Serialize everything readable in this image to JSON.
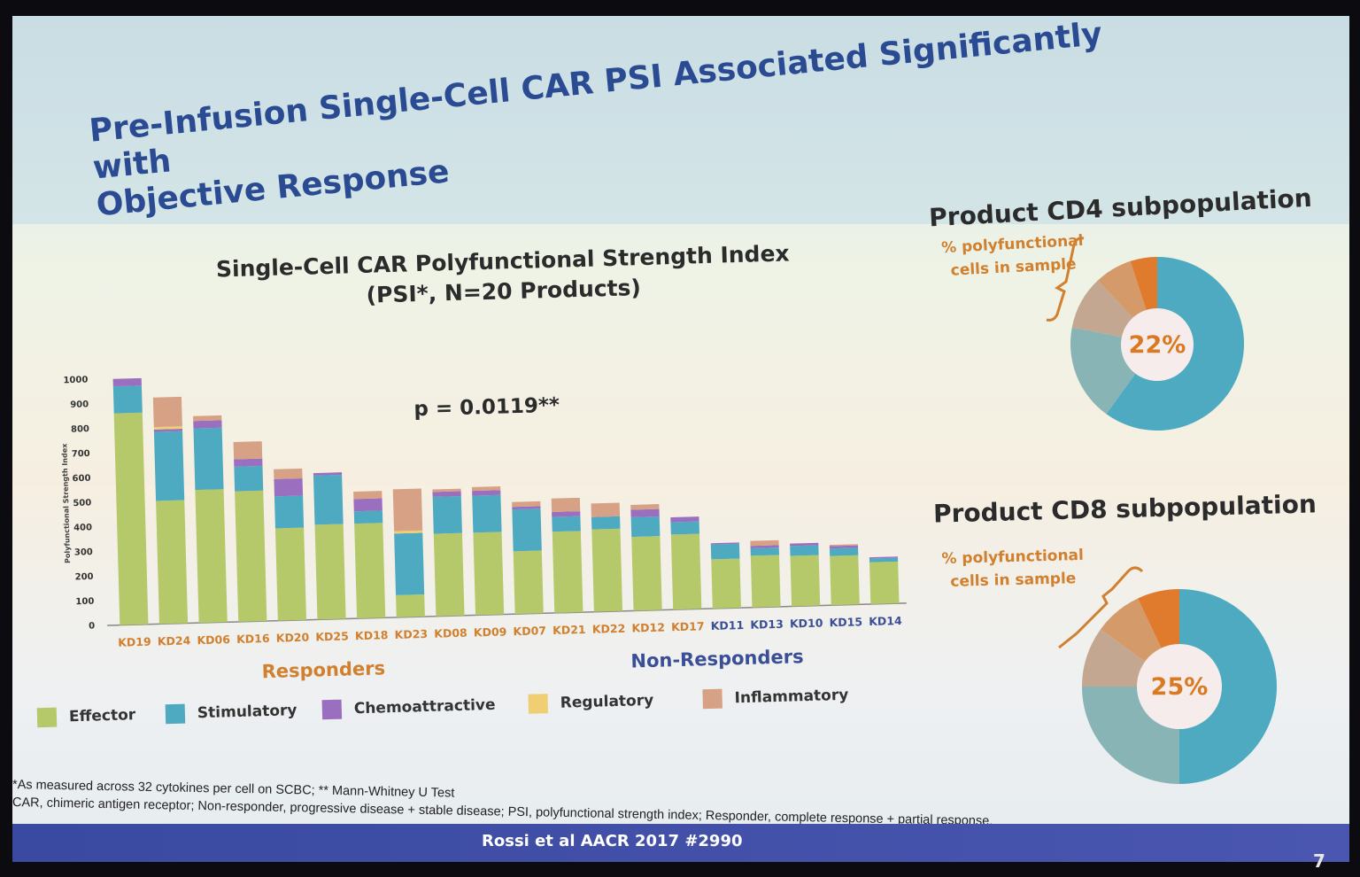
{
  "slide": {
    "title_line1": "Pre-Infusion Single-Cell CAR PSI Associated Significantly with",
    "title_line2": "Objective Response",
    "footnote1": "*As measured across 32 cytokines per cell on SCBC; ** Mann-Whitney U Test",
    "footnote2": "CAR, chimeric antigen receptor; Non-responder, progressive disease + stable disease; PSI, polyfunctional strength index; Responder, complete response + partial response.",
    "citation": "Rossi et al AACR 2017 #2990",
    "slide_number": "7"
  },
  "bar_chart": {
    "title_line1": "Single-Cell CAR Polyfunctional Strength Index",
    "title_line2": "(PSI*, N=20 Products)",
    "pvalue": "p = 0.0119**",
    "responders_label": "Responders",
    "nonresponders_label": "Non-Responders"
  },
  "legend": [
    {
      "label": "Effector",
      "color": "#b5c96a"
    },
    {
      "label": "Stimulatory",
      "color": "#4eaac1"
    },
    {
      "label": "Chemoattractive",
      "color": "#9a6fc0"
    },
    {
      "label": "Regulatory",
      "color": "#efcf72"
    },
    {
      "label": "Inflammatory",
      "color": "#d6a184"
    }
  ],
  "donuts": [
    {
      "title": "Product CD4 subpopulation",
      "note_line1": "% polyfunctional",
      "note_line2": "cells in sample",
      "center": "22%"
    },
    {
      "title": "Product CD8 subpopulation",
      "note_line1": "% polyfunctional",
      "note_line2": "cells in sample",
      "center": "25%"
    }
  ],
  "chart_data": [
    {
      "type": "bar",
      "stacked": true,
      "ylabel": "Polyfunctional Strength Index",
      "ylim": [
        0,
        1000
      ],
      "yticks": [
        0,
        100,
        200,
        300,
        400,
        500,
        600,
        700,
        800,
        900,
        1000
      ],
      "categories": [
        "KD19",
        "KD24",
        "KD06",
        "KD16",
        "KD20",
        "KD25",
        "KD18",
        "KD23",
        "KD08",
        "KD09",
        "KD07",
        "KD21",
        "KD22",
        "KD12",
        "KD17",
        "KD11",
        "KD13",
        "KD10",
        "KD15",
        "KD14"
      ],
      "responders": [
        "KD19",
        "KD24",
        "KD06",
        "KD16",
        "KD20",
        "KD25",
        "KD18",
        "KD23",
        "KD08",
        "KD09",
        "KD07",
        "KD21",
        "KD22",
        "KD12",
        "KD17"
      ],
      "series": [
        {
          "name": "Effector",
          "values": [
            860,
            500,
            540,
            530,
            375,
            385,
            385,
            90,
            335,
            335,
            255,
            330,
            335,
            300,
            305,
            200,
            210,
            205,
            200,
            170
          ]
        },
        {
          "name": "Stimulatory",
          "values": [
            110,
            280,
            250,
            100,
            130,
            200,
            50,
            250,
            150,
            150,
            170,
            60,
            50,
            80,
            50,
            60,
            30,
            40,
            30,
            15
          ]
        },
        {
          "name": "Chemoattractive",
          "values": [
            30,
            10,
            30,
            30,
            70,
            10,
            50,
            0,
            20,
            20,
            10,
            20,
            0,
            30,
            20,
            5,
            10,
            10,
            10,
            5
          ]
        },
        {
          "name": "Regulatory",
          "values": [
            0,
            10,
            0,
            0,
            0,
            0,
            0,
            10,
            0,
            0,
            0,
            0,
            0,
            0,
            0,
            0,
            0,
            0,
            0,
            0
          ]
        },
        {
          "name": "Inflammatory",
          "values": [
            0,
            120,
            20,
            70,
            40,
            0,
            30,
            170,
            10,
            15,
            20,
            55,
            55,
            20,
            0,
            0,
            20,
            0,
            5,
            0
          ]
        }
      ]
    },
    {
      "type": "pie",
      "title": "Product CD4 subpopulation",
      "center_label": "22%",
      "slices": [
        {
          "name": "Stimulatory",
          "value": 60,
          "color": "#4eaac1"
        },
        {
          "name": "other",
          "value": 18,
          "color": "#88b4b6"
        },
        {
          "name": "other",
          "value": 10,
          "color": "#c4a790"
        },
        {
          "name": "other",
          "value": 7,
          "color": "#d49a6a"
        },
        {
          "name": "other",
          "value": 5,
          "color": "#e07a2c"
        }
      ]
    },
    {
      "type": "pie",
      "title": "Product CD8 subpopulation",
      "center_label": "25%",
      "slices": [
        {
          "name": "Stimulatory",
          "value": 50,
          "color": "#4eaac1"
        },
        {
          "name": "other",
          "value": 25,
          "color": "#88b4b6"
        },
        {
          "name": "other",
          "value": 10,
          "color": "#c4a790"
        },
        {
          "name": "other",
          "value": 8,
          "color": "#d49a6a"
        },
        {
          "name": "other",
          "value": 7,
          "color": "#e07a2c"
        }
      ]
    }
  ]
}
